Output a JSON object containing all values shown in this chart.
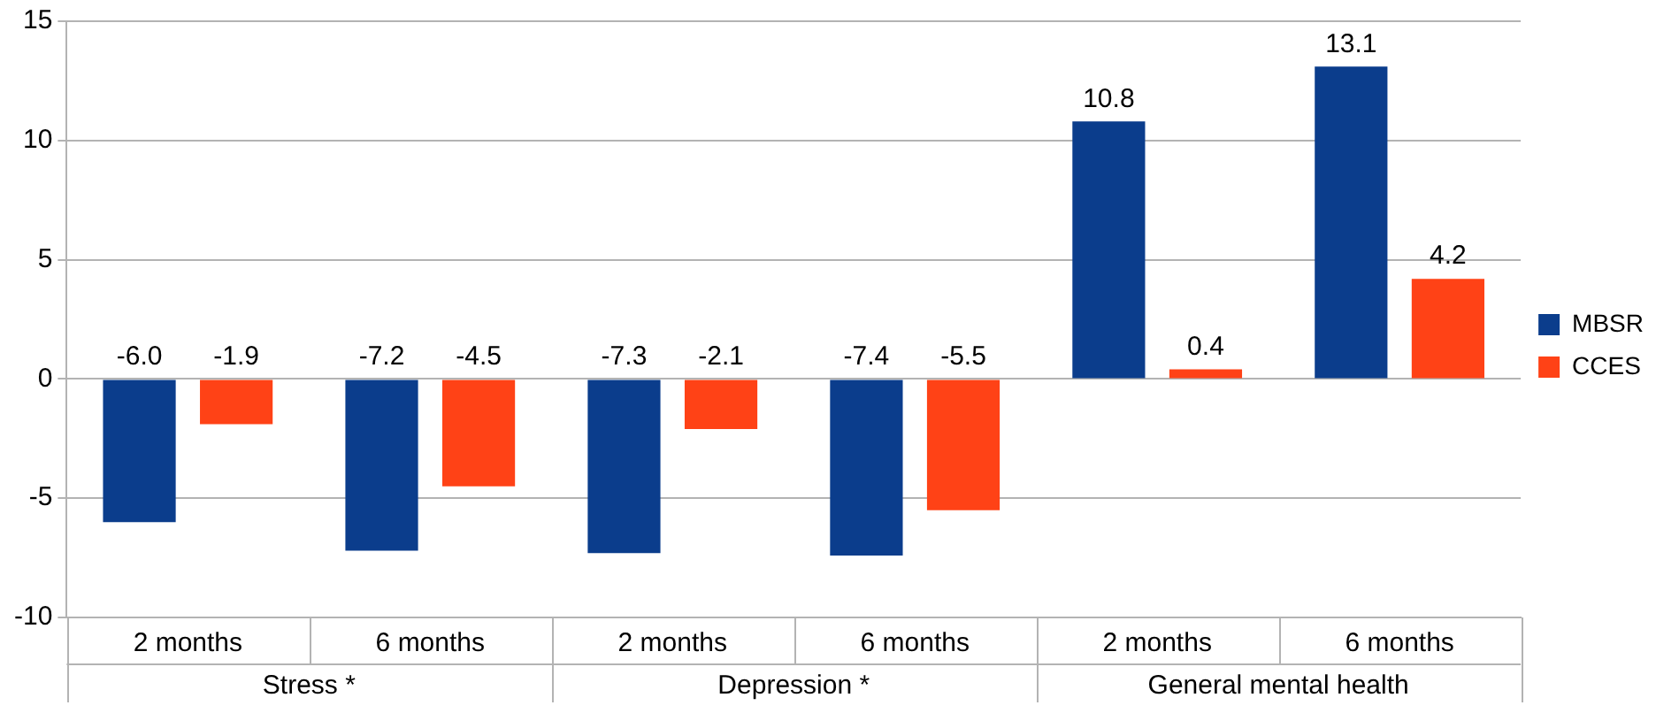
{
  "chart_data": {
    "type": "bar",
    "categories": [
      "2 months",
      "6 months",
      "2 months",
      "6 months",
      "2 months",
      "6 months"
    ],
    "series": [
      {
        "name": "MBSR",
        "color": "#0b3d8c",
        "values": [
          -6.0,
          -7.2,
          -7.3,
          -7.4,
          10.8,
          13.1
        ],
        "value_labels": [
          "-6.0",
          "-7.2",
          "-7.3",
          "-7.4",
          "10.8",
          "13.1"
        ]
      },
      {
        "name": "CCES",
        "color": "#ff4216",
        "values": [
          -1.9,
          -4.5,
          -2.1,
          -5.5,
          0.4,
          4.2
        ],
        "value_labels": [
          "-1.9",
          "-4.5",
          "-2.1",
          "-5.5",
          "0.4",
          "4.2"
        ]
      }
    ],
    "ylim": [
      -10,
      15
    ],
    "yticks": [
      -10,
      -5,
      0,
      5,
      10,
      15
    ],
    "grid": "y",
    "legend": "right",
    "annotations": [
      "Stress *",
      "Depression *",
      "General mental health"
    ]
  }
}
